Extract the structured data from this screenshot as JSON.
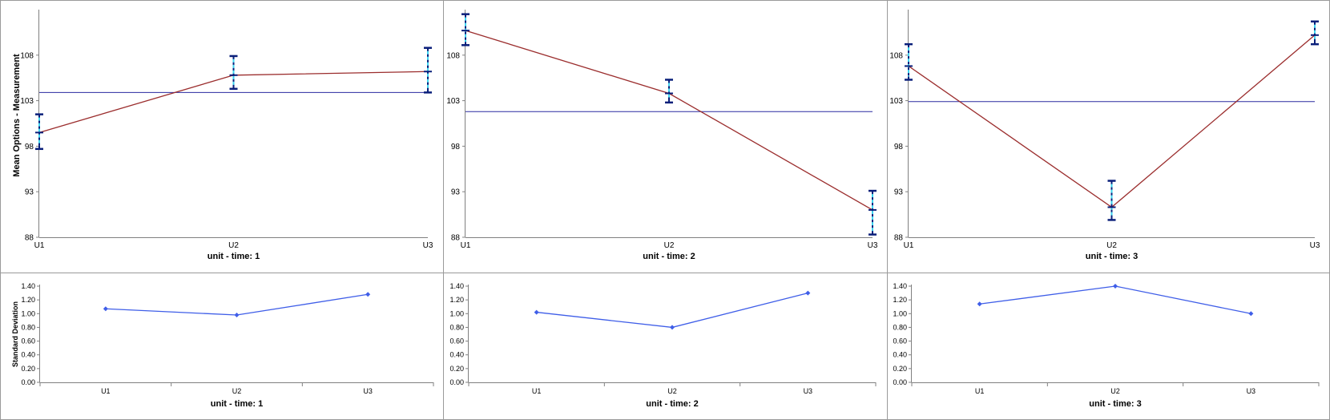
{
  "chart_data": [
    {
      "type": "line",
      "panel": "mean",
      "xlabel": "unit - time: 1",
      "ylabel": "Mean Options - Measurement",
      "categories": [
        "U1",
        "U2",
        "U3"
      ],
      "ylim": [
        88,
        113
      ],
      "yticks": [
        88,
        93,
        98,
        103,
        108
      ],
      "values": [
        99.5,
        105.8,
        106.2
      ],
      "error_bars": [
        [
          97.7,
          101.5
        ],
        [
          104.3,
          107.9
        ],
        [
          103.9,
          108.8
        ]
      ],
      "reference_line": 103.9,
      "colors": {
        "line": "#9b2d2d",
        "reference": "#2a2aa0",
        "error_bar": "#0a1f7a",
        "marker": "#3fd6f0"
      }
    },
    {
      "type": "line",
      "panel": "mean",
      "xlabel": "unit - time: 2",
      "ylabel": "",
      "categories": [
        "U1",
        "U2",
        "U3"
      ],
      "ylim": [
        88,
        113
      ],
      "yticks": [
        88,
        93,
        98,
        103,
        108
      ],
      "values": [
        110.7,
        103.8,
        91
      ],
      "error_bars": [
        [
          109.1,
          112.5
        ],
        [
          102.8,
          105.3
        ],
        [
          88.3,
          93.1
        ]
      ],
      "reference_line": 101.8,
      "colors": {
        "line": "#9b2d2d",
        "reference": "#2a2aa0",
        "error_bar": "#0a1f7a",
        "marker": "#3fd6f0"
      }
    },
    {
      "type": "line",
      "panel": "mean",
      "xlabel": "unit - time: 3",
      "ylabel": "",
      "categories": [
        "U1",
        "U2",
        "U3"
      ],
      "ylim": [
        88,
        113
      ],
      "yticks": [
        88,
        93,
        98,
        103,
        108
      ],
      "values": [
        106.8,
        91.3,
        110.2
      ],
      "error_bars": [
        [
          105.3,
          109.2
        ],
        [
          89.9,
          94.2
        ],
        [
          109.2,
          111.7
        ]
      ],
      "reference_line": 102.9,
      "colors": {
        "line": "#9b2d2d",
        "reference": "#2a2aa0",
        "error_bar": "#0a1f7a",
        "marker": "#3fd6f0"
      }
    },
    {
      "type": "line",
      "panel": "stddev",
      "xlabel": "unit - time: 1",
      "ylabel": "Standard Deviation",
      "categories": [
        "U1",
        "U2",
        "U3"
      ],
      "ylim": [
        0,
        1.4
      ],
      "yticks": [
        "0.00",
        "0.20",
        "0.40",
        "0.60",
        "0.80",
        "1.00",
        "1.20",
        "1.40"
      ],
      "values": [
        1.07,
        0.98,
        1.28
      ],
      "colors": {
        "line": "#3f5ee8",
        "marker": "#3f5ee8"
      }
    },
    {
      "type": "line",
      "panel": "stddev",
      "xlabel": "unit - time: 2",
      "ylabel": "",
      "categories": [
        "U1",
        "U2",
        "U3"
      ],
      "ylim": [
        0,
        1.4
      ],
      "yticks": [
        "0.00",
        "0.20",
        "0.40",
        "0.60",
        "0.80",
        "1.00",
        "1.20",
        "1.40"
      ],
      "values": [
        1.02,
        0.8,
        1.3
      ],
      "colors": {
        "line": "#3f5ee8",
        "marker": "#3f5ee8"
      }
    },
    {
      "type": "line",
      "panel": "stddev",
      "xlabel": "unit - time: 3",
      "ylabel": "",
      "categories": [
        "U1",
        "U2",
        "U3"
      ],
      "ylim": [
        0,
        1.4
      ],
      "yticks": [
        "0.00",
        "0.20",
        "0.40",
        "0.60",
        "0.80",
        "1.00",
        "1.20",
        "1.40"
      ],
      "values": [
        1.14,
        1.4,
        1.0
      ],
      "colors": {
        "line": "#3f5ee8",
        "marker": "#3f5ee8"
      }
    }
  ]
}
